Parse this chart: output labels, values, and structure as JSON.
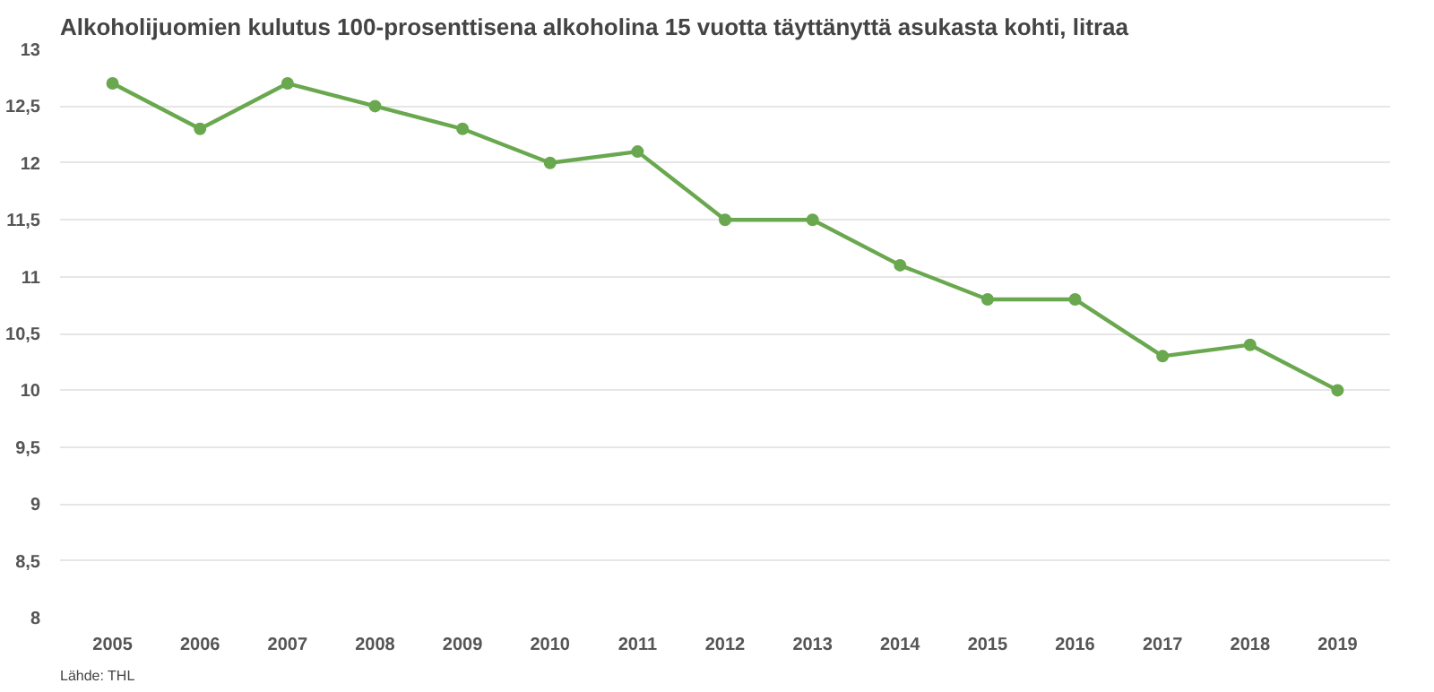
{
  "chart_data": {
    "type": "line",
    "title": "Alkoholijuomien kulutus 100-prosenttisena alkoholina 15 vuotta täyttänyttä asukasta kohti, litraa",
    "categories": [
      "2005",
      "2006",
      "2007",
      "2008",
      "2009",
      "2010",
      "2011",
      "2012",
      "2013",
      "2014",
      "2015",
      "2016",
      "2017",
      "2018",
      "2019"
    ],
    "series": [
      {
        "color": "#6aa84f",
        "values": [
          12.7,
          12.3,
          12.7,
          12.5,
          12.3,
          12.0,
          12.1,
          11.5,
          11.5,
          11.1,
          10.8,
          10.8,
          10.3,
          10.4,
          10.0
        ]
      }
    ],
    "ylim": [
      8,
      13
    ],
    "yticks": [
      8,
      {
        "value": 8.5,
        "label": "8,5"
      },
      9,
      {
        "value": 9.5,
        "label": "9,5"
      },
      10,
      {
        "value": 10.5,
        "label": "10,5"
      },
      11,
      {
        "value": 11.5,
        "label": "11,5"
      },
      12,
      {
        "value": 12.5,
        "label": "12,5"
      },
      13
    ],
    "grid": "y",
    "marker": "circle",
    "line_style": "solid",
    "annotations": [
      "Lähde: THL"
    ]
  }
}
